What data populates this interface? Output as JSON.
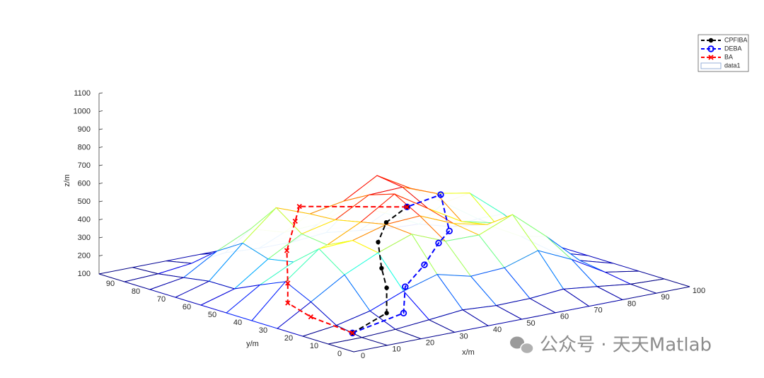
{
  "chart_data": {
    "type": "surface3d",
    "xlabel": "x/m",
    "ylabel": "y/m",
    "zlabel": "z/m",
    "xlim": [
      0,
      100
    ],
    "ylim": [
      0,
      100
    ],
    "zlim": [
      100,
      1100
    ],
    "xticks": [
      0,
      10,
      20,
      30,
      40,
      50,
      60,
      70,
      80,
      90,
      100
    ],
    "yticks": [
      0,
      10,
      20,
      30,
      40,
      50,
      60,
      70,
      80,
      90
    ],
    "zticks": [
      100,
      200,
      300,
      400,
      500,
      600,
      700,
      800,
      900,
      1000,
      1100
    ],
    "legend_position": "northeast",
    "surface": {
      "name": "data1",
      "colormap": "jet",
      "x": [
        0,
        10,
        20,
        30,
        40,
        50,
        60,
        70,
        80,
        90,
        100
      ],
      "y": [
        0,
        10,
        20,
        30,
        40,
        50,
        60,
        70,
        80,
        90,
        100
      ],
      "z": [
        [
          100,
          100,
          100,
          100,
          100,
          100,
          100,
          100,
          100,
          100,
          100
        ],
        [
          100,
          100,
          109,
          126,
          145,
          133,
          136,
          152,
          130,
          107,
          100
        ],
        [
          100,
          124,
          168,
          242,
          298,
          252,
          263,
          322,
          237,
          130,
          100
        ],
        [
          100,
          211,
          325,
          411,
          478,
          403,
          401,
          478,
          322,
          152,
          100
        ],
        [
          100,
          280,
          426,
          436,
          489,
          500,
          422,
          380,
          279,
          154,
          100
        ],
        [
          100,
          219,
          310,
          368,
          459,
          578,
          462,
          354,
          310,
          211,
          100
        ],
        [
          100,
          154,
          283,
          386,
          428,
          530,
          537,
          466,
          432,
          280,
          100
        ],
        [
          100,
          153,
          328,
          488,
          418,
          452,
          558,
          451,
          336,
          211,
          100
        ],
        [
          100,
          130,
          241,
          328,
          273,
          282,
          348,
          272,
          174,
          124,
          100
        ],
        [
          100,
          108,
          130,
          153,
          141,
          140,
          156,
          132,
          111,
          102,
          100
        ],
        [
          100,
          100,
          100,
          100,
          100,
          100,
          100,
          100,
          100,
          100,
          100
        ]
      ]
    },
    "series": [
      {
        "name": "CPFIBA",
        "color": "#000000",
        "marker": "dot",
        "x": [
          11,
          28,
          28,
          28,
          30,
          40,
          53
        ],
        "y": [
          15,
          24,
          24,
          26,
          30,
          40,
          49
        ],
        "z": [
          100,
          110,
          250,
          350,
          470,
          500,
          500
        ]
      },
      {
        "name": "DEBA",
        "color": "#0000ff",
        "marker": "circle",
        "x": [
          11,
          30,
          32,
          40,
          48,
          55,
          60,
          53
        ],
        "y": [
          15,
          20,
          22,
          25,
          30,
          35,
          45,
          49
        ],
        "z": [
          100,
          120,
          250,
          330,
          400,
          420,
          560,
          500
        ]
      },
      {
        "name": "BA",
        "color": "#ff0000",
        "marker": "cross",
        "x": [
          11,
          13,
          16,
          16,
          18,
          22,
          24,
          53
        ],
        "y": [
          15,
          34,
          47,
          47,
          50,
          52,
          53,
          49
        ],
        "z": [
          100,
          100,
          110,
          220,
          380,
          520,
          590,
          500
        ]
      }
    ]
  },
  "watermark": "公众号 · 天天Matlab"
}
